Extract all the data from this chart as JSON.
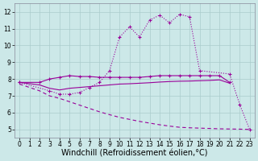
{
  "background_color": "#cce8e8",
  "grid_color": "#aacccc",
  "line_color": "#990099",
  "xlim": [
    -0.5,
    23.5
  ],
  "ylim": [
    4.5,
    12.5
  ],
  "yticks": [
    5,
    6,
    7,
    8,
    9,
    10,
    11,
    12
  ],
  "xticks": [
    0,
    1,
    2,
    3,
    4,
    5,
    6,
    7,
    8,
    9,
    10,
    11,
    12,
    13,
    14,
    15,
    16,
    17,
    18,
    19,
    20,
    21,
    22,
    23
  ],
  "xlabel": "Windchill (Refroidissement éolien,°C)",
  "xlabel_fontsize": 7.0,
  "tick_fontsize": 5.5,
  "main_curve_x": [
    0,
    3,
    4,
    5,
    6,
    7,
    8,
    9,
    10,
    11,
    12,
    13,
    14,
    15,
    16,
    17,
    18,
    21,
    22,
    23
  ],
  "main_curve_y": [
    7.8,
    7.3,
    7.1,
    7.1,
    7.2,
    7.5,
    7.8,
    8.5,
    10.5,
    11.1,
    10.5,
    11.5,
    11.8,
    11.35,
    11.85,
    11.7,
    8.5,
    8.3,
    6.5,
    5.0
  ],
  "upper_flat_x": [
    0,
    2,
    3,
    4,
    5,
    6,
    7,
    8,
    9,
    10,
    11,
    12,
    13,
    14,
    15,
    16,
    17,
    18,
    19,
    20,
    21
  ],
  "upper_flat_y": [
    7.8,
    7.8,
    8.0,
    8.1,
    8.2,
    8.15,
    8.15,
    8.1,
    8.1,
    8.1,
    8.1,
    8.1,
    8.15,
    8.2,
    8.2,
    8.2,
    8.2,
    8.2,
    8.2,
    8.2,
    7.8
  ],
  "middle_line_x": [
    0,
    2,
    3,
    4,
    5,
    6,
    7,
    8,
    9,
    10,
    11,
    12,
    13,
    14,
    15,
    16,
    17,
    18,
    19,
    20,
    21
  ],
  "middle_line_y": [
    7.8,
    7.65,
    7.45,
    7.35,
    7.45,
    7.5,
    7.55,
    7.6,
    7.65,
    7.7,
    7.72,
    7.75,
    7.78,
    7.82,
    7.85,
    7.87,
    7.88,
    7.9,
    7.92,
    7.95,
    7.75
  ],
  "diag_x": [
    0,
    1,
    2,
    3,
    4,
    5,
    6,
    7,
    8,
    9,
    10,
    11,
    12,
    13,
    14,
    15,
    16,
    17,
    18,
    19,
    20,
    21,
    22,
    23
  ],
  "diag_y": [
    7.7,
    7.5,
    7.3,
    7.0,
    6.85,
    6.65,
    6.45,
    6.25,
    6.05,
    5.88,
    5.72,
    5.6,
    5.48,
    5.38,
    5.28,
    5.2,
    5.13,
    5.1,
    5.08,
    5.06,
    5.04,
    5.03,
    5.02,
    5.0
  ]
}
